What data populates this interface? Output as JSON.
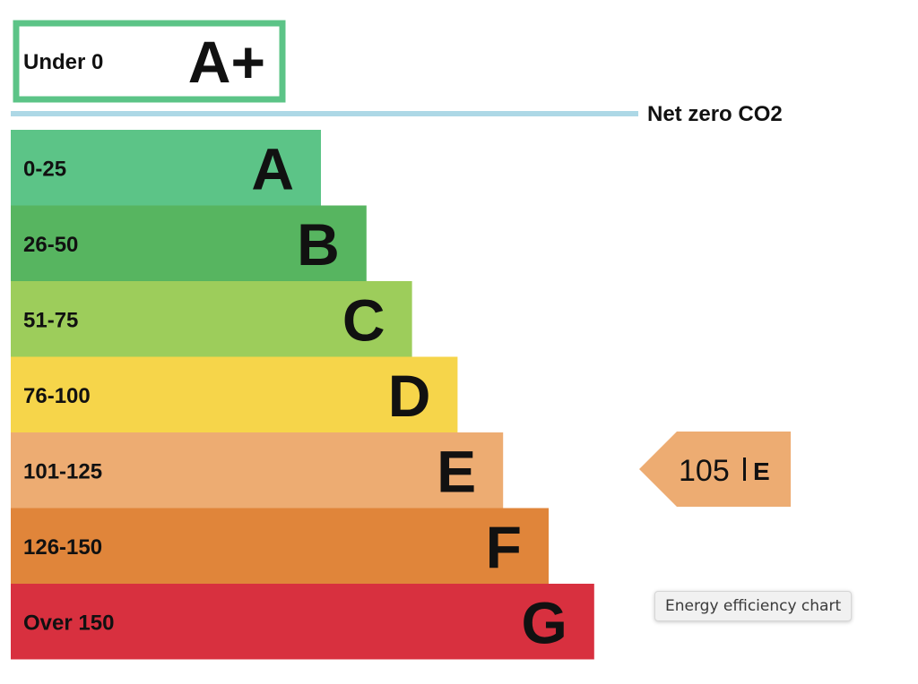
{
  "chart_data": {
    "type": "bar",
    "top_band": {
      "range_label": "Under 0",
      "grade": "A+",
      "color": "#5cc487"
    },
    "reference_line": {
      "label": "Net zero CO2",
      "color": "#add8e6"
    },
    "bands": [
      {
        "range_label": "0-25",
        "grade": "A",
        "color": "#5cc487"
      },
      {
        "range_label": "26-50",
        "grade": "B",
        "color": "#57b560"
      },
      {
        "range_label": "51-75",
        "grade": "C",
        "color": "#9dcd5b"
      },
      {
        "range_label": "76-100",
        "grade": "D",
        "color": "#f6d54a"
      },
      {
        "range_label": "101-125",
        "grade": "E",
        "color": "#edac72"
      },
      {
        "range_label": "126-150",
        "grade": "F",
        "color": "#e0853a"
      },
      {
        "range_label": "Over 150",
        "grade": "G",
        "color": "#d8303f"
      }
    ],
    "current_rating": {
      "value": 105,
      "grade": "E",
      "value_text": "105",
      "color": "#edac72"
    }
  },
  "tooltip": {
    "text": "Energy efficiency chart"
  }
}
